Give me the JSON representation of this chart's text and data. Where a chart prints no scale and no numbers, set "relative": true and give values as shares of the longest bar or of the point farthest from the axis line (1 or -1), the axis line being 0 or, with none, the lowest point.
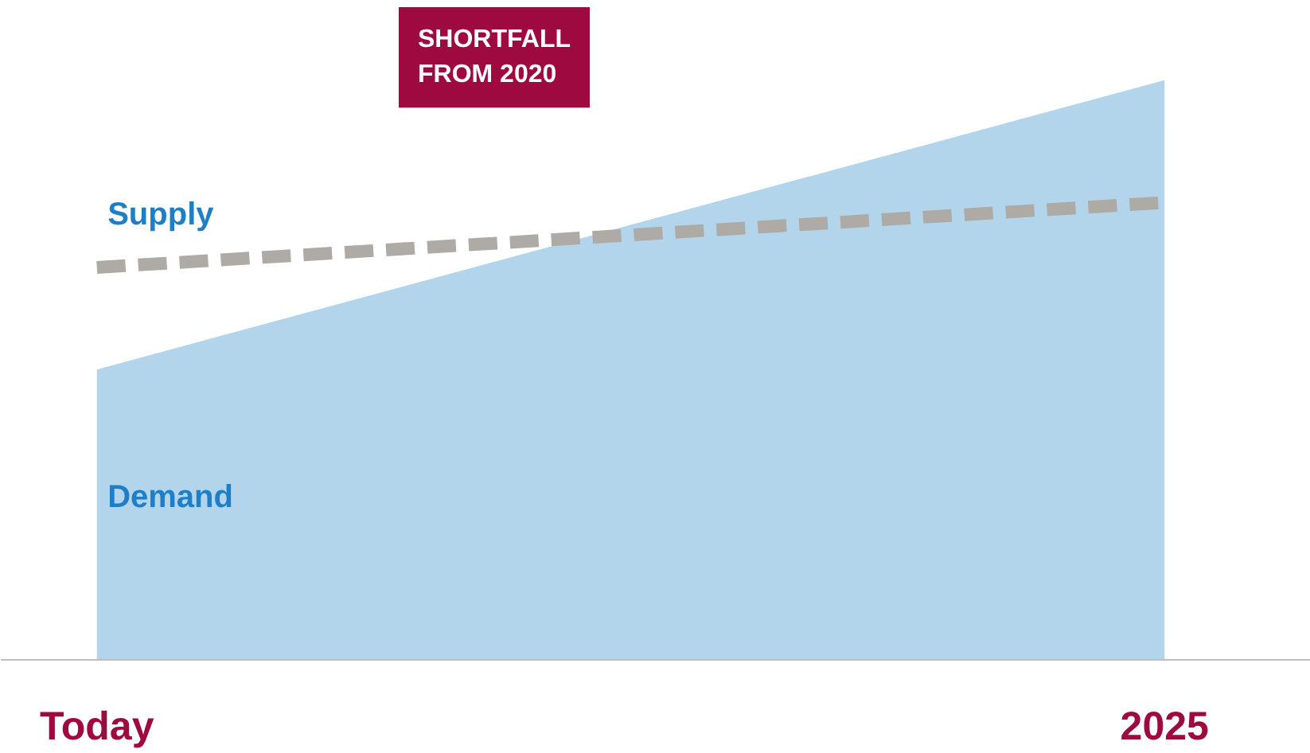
{
  "chart_data": {
    "type": "area",
    "relative": true,
    "categories": [
      "Today",
      "2025"
    ],
    "series": [
      {
        "name": "Demand",
        "color": "#b3d5ec",
        "values": [
          0.501,
          1
        ]
      },
      {
        "name": "Supply",
        "type": "line",
        "color": "#aeaaa5",
        "line_style": "dashed",
        "values": [
          0.677,
          0.789
        ]
      }
    ],
    "annotations": [
      "SHORTFALL\nFROM 2020"
    ],
    "grid": false
  }
}
